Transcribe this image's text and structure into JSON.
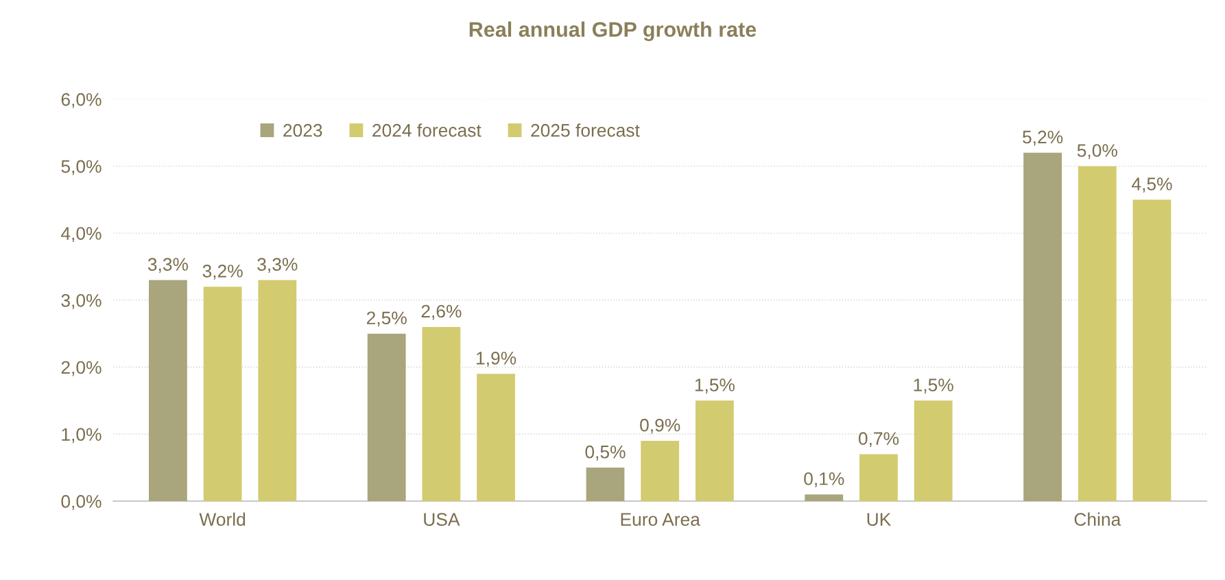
{
  "chart_data": {
    "type": "bar",
    "title": "Real annual GDP growth rate",
    "categories": [
      "World",
      "USA",
      "Euro Area",
      "UK",
      "China"
    ],
    "series": [
      {
        "name": "2023",
        "color": "#a9a57c",
        "values": [
          3.3,
          2.5,
          0.5,
          0.1,
          5.2
        ],
        "value_labels": [
          "3,3%",
          "2,5%",
          "0,5%",
          "0,1%",
          "5,2%"
        ]
      },
      {
        "name": "2024 forecast",
        "color": "#d3cb6f",
        "values": [
          3.2,
          2.6,
          0.9,
          0.7,
          5.0
        ],
        "value_labels": [
          "3,2%",
          "2,6%",
          "0,9%",
          "0,7%",
          "5,0%"
        ]
      },
      {
        "name": "2025 forecast",
        "color": "#d3cb6f",
        "values": [
          3.3,
          1.9,
          1.5,
          1.5,
          4.5
        ],
        "value_labels": [
          "3,3%",
          "1,9%",
          "1,5%",
          "1,5%",
          "4,5%"
        ]
      }
    ],
    "ylim": [
      0,
      6
    ],
    "yticks": [
      {
        "value": 0,
        "label": "0,0%"
      },
      {
        "value": 1,
        "label": "1,0%"
      },
      {
        "value": 2,
        "label": "2,0%"
      },
      {
        "value": 3,
        "label": "3,0%"
      },
      {
        "value": 4,
        "label": "4,0%"
      },
      {
        "value": 5,
        "label": "5,0%"
      },
      {
        "value": 6,
        "label": "6,0%"
      }
    ],
    "grid": "y",
    "legend": "top left"
  }
}
